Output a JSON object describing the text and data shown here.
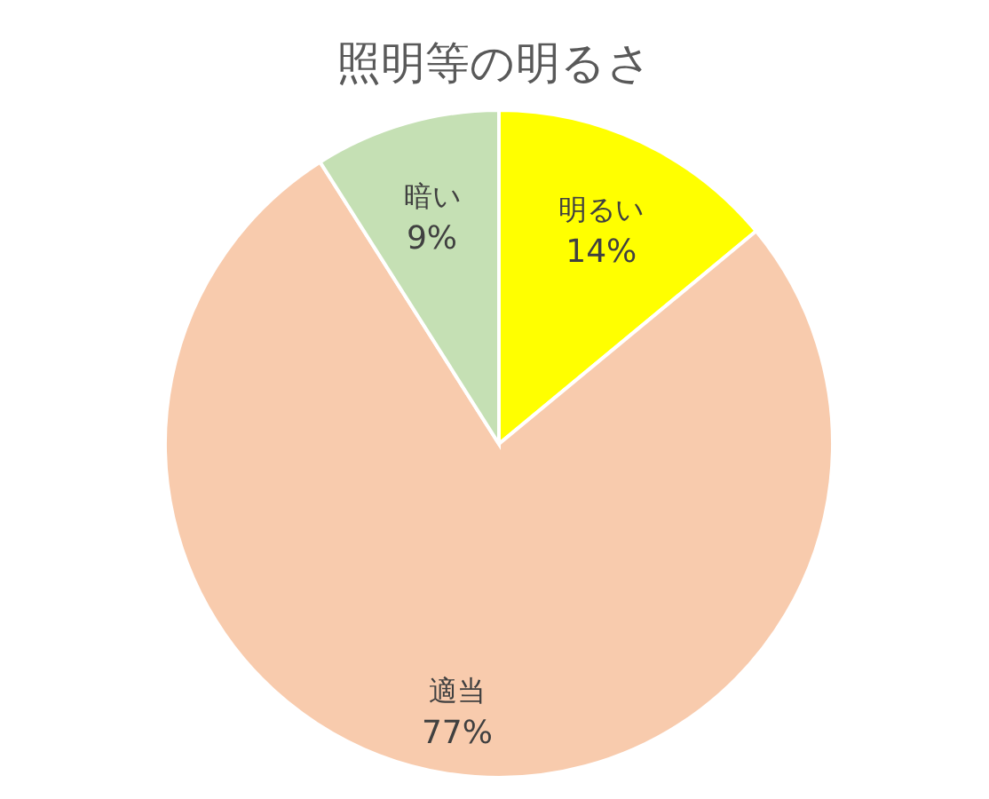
{
  "chart_data": {
    "type": "pie",
    "title": "照明等の明るさ",
    "categories": [
      "明るい",
      "適当",
      "暗い"
    ],
    "values": [
      14,
      77,
      9
    ],
    "colors": [
      "#ffff00",
      "#f8cbad",
      "#c5e0b4"
    ],
    "value_labels": [
      "14%",
      "77%",
      "9%"
    ],
    "legend": false
  }
}
